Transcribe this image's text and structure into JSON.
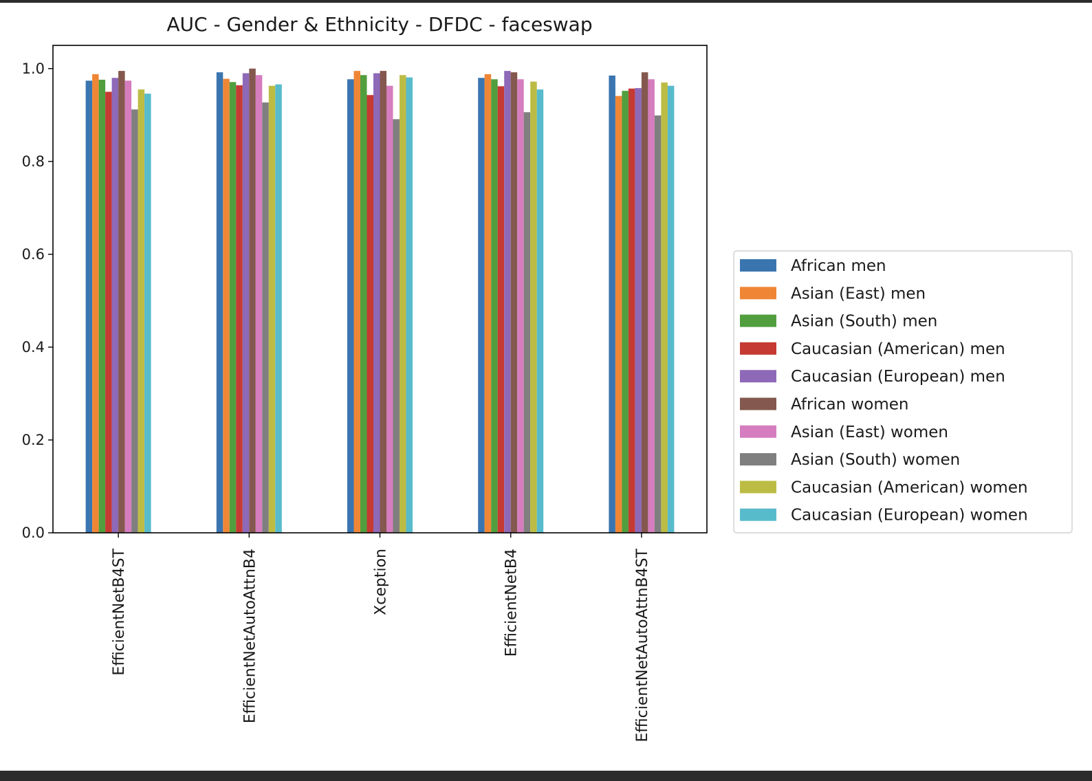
{
  "chart_data": {
    "type": "bar",
    "title": "AUC - Gender & Ethnicity - DFDC - faceswap",
    "xlabel": "",
    "ylabel": "",
    "ylim": [
      0,
      1.05
    ],
    "yticks": [
      "0.0",
      "0.2",
      "0.4",
      "0.6",
      "0.8",
      "1.0"
    ],
    "ytick_values": [
      0,
      0.2,
      0.4,
      0.6,
      0.8,
      1.0
    ],
    "grid": false,
    "legend_position": "right",
    "categories": [
      "EfficientNetB4ST",
      "EfficientNetAutoAttnB4",
      "Xception",
      "EfficientNetB4",
      "EfficientNetAutoAttnB4ST"
    ],
    "series": [
      {
        "name": "African men",
        "color": "#3a75b0",
        "values": [
          0.974,
          0.992,
          0.977,
          0.98,
          0.985
        ]
      },
      {
        "name": "Asian (East) men",
        "color": "#ef8636",
        "values": [
          0.988,
          0.978,
          0.995,
          0.988,
          0.941
        ]
      },
      {
        "name": "Asian (South) men",
        "color": "#519e3e",
        "values": [
          0.976,
          0.971,
          0.986,
          0.977,
          0.952
        ]
      },
      {
        "name": "Caucasian (American) men",
        "color": "#c53a32",
        "values": [
          0.95,
          0.964,
          0.943,
          0.962,
          0.957
        ]
      },
      {
        "name": "Caucasian (European) men",
        "color": "#8d69b8",
        "values": [
          0.98,
          0.99,
          0.99,
          0.995,
          0.958
        ]
      },
      {
        "name": "African women",
        "color": "#84584e",
        "values": [
          0.995,
          1.0,
          0.995,
          0.992,
          0.992
        ]
      },
      {
        "name": "Asian (East) women",
        "color": "#d57dbe",
        "values": [
          0.974,
          0.986,
          0.963,
          0.977,
          0.977
        ]
      },
      {
        "name": "Asian (South) women",
        "color": "#7f7f7f",
        "values": [
          0.912,
          0.927,
          0.891,
          0.906,
          0.899
        ]
      },
      {
        "name": "Caucasian (American) women",
        "color": "#bcbc45",
        "values": [
          0.955,
          0.963,
          0.986,
          0.972,
          0.97
        ]
      },
      {
        "name": "Caucasian (European) women",
        "color": "#58bbcc",
        "values": [
          0.946,
          0.966,
          0.981,
          0.955,
          0.963
        ]
      }
    ]
  }
}
